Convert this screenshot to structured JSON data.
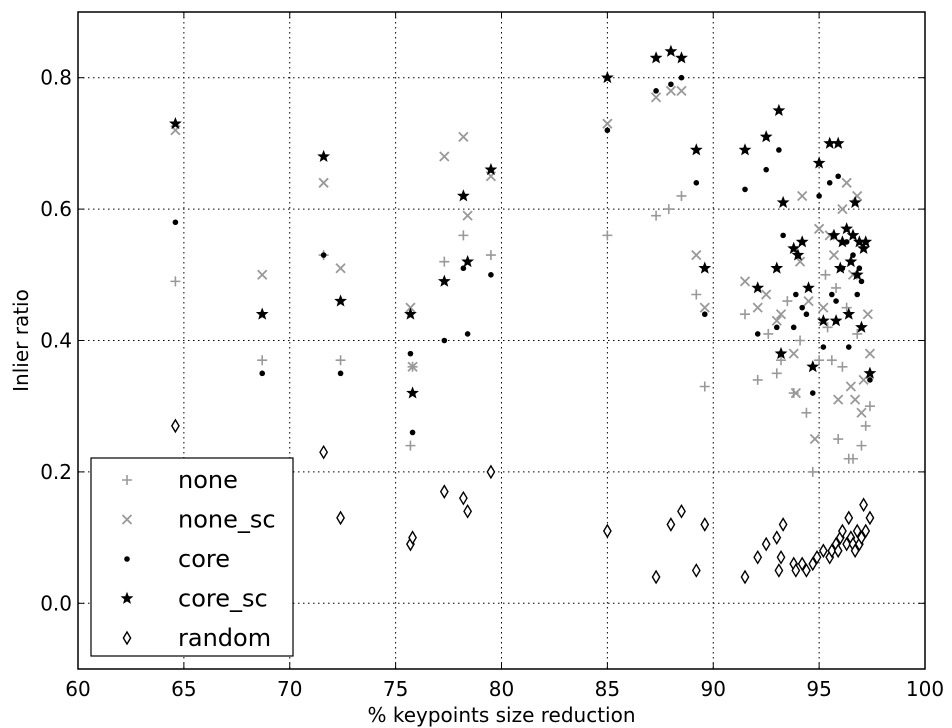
{
  "chart_data": {
    "type": "scatter",
    "xlabel": "% keypoints size reduction",
    "ylabel": "Inlier ratio",
    "xlim": [
      60,
      100
    ],
    "ylim": [
      -0.1,
      0.9
    ],
    "xticks": [
      60,
      65,
      70,
      75,
      80,
      85,
      90,
      95,
      100
    ],
    "yticks": [
      0.0,
      0.2,
      0.4,
      0.6,
      0.8
    ],
    "ytick_labels": [
      "0.0",
      "0.2",
      "0.4",
      "0.6",
      "0.8"
    ],
    "grid": true,
    "legend_position": "lower-left",
    "series": [
      {
        "name": "none",
        "marker": "plus",
        "color": "#999999",
        "points": [
          [
            64.6,
            0.49
          ],
          [
            68.7,
            0.37
          ],
          [
            71.6,
            0.53
          ],
          [
            72.4,
            0.37
          ],
          [
            75.7,
            0.24
          ],
          [
            75.8,
            0.36
          ],
          [
            77.3,
            0.52
          ],
          [
            78.2,
            0.56
          ],
          [
            79.5,
            0.53
          ],
          [
            85.0,
            0.56
          ],
          [
            87.3,
            0.59
          ],
          [
            87.9,
            0.6
          ],
          [
            88.5,
            0.62
          ],
          [
            89.2,
            0.47
          ],
          [
            89.6,
            0.33
          ],
          [
            91.5,
            0.44
          ],
          [
            92.1,
            0.34
          ],
          [
            92.6,
            0.41
          ],
          [
            93.0,
            0.35
          ],
          [
            93.2,
            0.37
          ],
          [
            93.8,
            0.32
          ],
          [
            94.4,
            0.29
          ],
          [
            94.7,
            0.2
          ],
          [
            95.0,
            0.37
          ],
          [
            95.4,
            0.42
          ],
          [
            95.6,
            0.37
          ],
          [
            95.9,
            0.25
          ],
          [
            96.1,
            0.36
          ],
          [
            96.4,
            0.22
          ],
          [
            96.6,
            0.22
          ],
          [
            96.8,
            0.41
          ],
          [
            97.0,
            0.24
          ],
          [
            97.2,
            0.27
          ],
          [
            97.4,
            0.3
          ],
          [
            95.3,
            0.5
          ],
          [
            95.8,
            0.48
          ],
          [
            96.3,
            0.45
          ],
          [
            94.1,
            0.4
          ],
          [
            93.5,
            0.46
          ]
        ]
      },
      {
        "name": "none_sc",
        "marker": "x",
        "color": "#999999",
        "points": [
          [
            64.6,
            0.72
          ],
          [
            68.7,
            0.5
          ],
          [
            71.6,
            0.64
          ],
          [
            72.4,
            0.51
          ],
          [
            75.7,
            0.45
          ],
          [
            75.8,
            0.36
          ],
          [
            77.3,
            0.68
          ],
          [
            78.2,
            0.71
          ],
          [
            78.4,
            0.59
          ],
          [
            79.5,
            0.65
          ],
          [
            85.0,
            0.73
          ],
          [
            87.3,
            0.77
          ],
          [
            88.0,
            0.78
          ],
          [
            88.5,
            0.78
          ],
          [
            89.2,
            0.53
          ],
          [
            89.6,
            0.45
          ],
          [
            91.5,
            0.49
          ],
          [
            92.1,
            0.45
          ],
          [
            92.5,
            0.47
          ],
          [
            93.0,
            0.43
          ],
          [
            93.2,
            0.44
          ],
          [
            93.8,
            0.38
          ],
          [
            94.1,
            0.52
          ],
          [
            94.2,
            0.62
          ],
          [
            94.5,
            0.46
          ],
          [
            94.8,
            0.25
          ],
          [
            95.0,
            0.57
          ],
          [
            95.2,
            0.45
          ],
          [
            95.5,
            0.56
          ],
          [
            95.7,
            0.53
          ],
          [
            95.9,
            0.31
          ],
          [
            96.1,
            0.6
          ],
          [
            96.3,
            0.64
          ],
          [
            96.5,
            0.33
          ],
          [
            96.6,
            0.5
          ],
          [
            96.8,
            0.62
          ],
          [
            97.0,
            0.29
          ],
          [
            97.1,
            0.34
          ],
          [
            97.3,
            0.44
          ],
          [
            97.4,
            0.38
          ],
          [
            93.9,
            0.32
          ],
          [
            96.7,
            0.31
          ]
        ]
      },
      {
        "name": "core",
        "marker": "dot",
        "color": "#000000",
        "points": [
          [
            64.6,
            0.58
          ],
          [
            68.7,
            0.35
          ],
          [
            71.6,
            0.53
          ],
          [
            72.4,
            0.35
          ],
          [
            75.7,
            0.38
          ],
          [
            75.8,
            0.26
          ],
          [
            77.3,
            0.4
          ],
          [
            78.2,
            0.51
          ],
          [
            78.4,
            0.41
          ],
          [
            79.5,
            0.5
          ],
          [
            85.0,
            0.72
          ],
          [
            87.3,
            0.78
          ],
          [
            88.0,
            0.79
          ],
          [
            88.5,
            0.8
          ],
          [
            89.2,
            0.64
          ],
          [
            89.6,
            0.44
          ],
          [
            91.5,
            0.63
          ],
          [
            92.1,
            0.41
          ],
          [
            92.5,
            0.66
          ],
          [
            93.0,
            0.42
          ],
          [
            93.1,
            0.69
          ],
          [
            93.2,
            0.38
          ],
          [
            93.3,
            0.56
          ],
          [
            93.8,
            0.42
          ],
          [
            93.9,
            0.47
          ],
          [
            94.2,
            0.45
          ],
          [
            94.4,
            0.44
          ],
          [
            94.7,
            0.32
          ],
          [
            95.0,
            0.62
          ],
          [
            95.2,
            0.39
          ],
          [
            95.5,
            0.64
          ],
          [
            95.6,
            0.47
          ],
          [
            95.8,
            0.46
          ],
          [
            95.9,
            0.65
          ],
          [
            96.1,
            0.51
          ],
          [
            96.3,
            0.55
          ],
          [
            96.4,
            0.39
          ],
          [
            96.6,
            0.53
          ],
          [
            96.8,
            0.47
          ],
          [
            96.9,
            0.51
          ],
          [
            97.0,
            0.49
          ],
          [
            97.2,
            0.55
          ],
          [
            97.4,
            0.34
          ]
        ]
      },
      {
        "name": "core_sc",
        "marker": "star",
        "color": "#000000",
        "points": [
          [
            64.6,
            0.73
          ],
          [
            68.7,
            0.44
          ],
          [
            71.6,
            0.68
          ],
          [
            72.4,
            0.46
          ],
          [
            75.7,
            0.44
          ],
          [
            75.8,
            0.32
          ],
          [
            77.3,
            0.49
          ],
          [
            78.2,
            0.62
          ],
          [
            78.4,
            0.52
          ],
          [
            79.5,
            0.66
          ],
          [
            85.0,
            0.8
          ],
          [
            87.3,
            0.83
          ],
          [
            88.0,
            0.84
          ],
          [
            88.5,
            0.83
          ],
          [
            89.2,
            0.69
          ],
          [
            89.6,
            0.51
          ],
          [
            91.5,
            0.69
          ],
          [
            92.1,
            0.48
          ],
          [
            92.5,
            0.71
          ],
          [
            93.0,
            0.51
          ],
          [
            93.1,
            0.75
          ],
          [
            93.2,
            0.38
          ],
          [
            93.3,
            0.61
          ],
          [
            93.8,
            0.54
          ],
          [
            94.0,
            0.53
          ],
          [
            94.2,
            0.55
          ],
          [
            94.5,
            0.48
          ],
          [
            94.7,
            0.36
          ],
          [
            95.0,
            0.67
          ],
          [
            95.2,
            0.43
          ],
          [
            95.5,
            0.7
          ],
          [
            95.7,
            0.56
          ],
          [
            95.8,
            0.43
          ],
          [
            95.9,
            0.7
          ],
          [
            96.0,
            0.51
          ],
          [
            96.1,
            0.55
          ],
          [
            96.3,
            0.57
          ],
          [
            96.4,
            0.44
          ],
          [
            96.5,
            0.52
          ],
          [
            96.6,
            0.56
          ],
          [
            96.7,
            0.61
          ],
          [
            96.8,
            0.5
          ],
          [
            96.9,
            0.55
          ],
          [
            97.0,
            0.42
          ],
          [
            97.1,
            0.54
          ],
          [
            97.2,
            0.55
          ],
          [
            97.4,
            0.35
          ]
        ]
      },
      {
        "name": "random",
        "marker": "thin_diamond",
        "color": "#000000",
        "points": [
          [
            64.6,
            0.27
          ],
          [
            71.6,
            0.23
          ],
          [
            72.4,
            0.13
          ],
          [
            75.7,
            0.09
          ],
          [
            75.8,
            0.1
          ],
          [
            77.3,
            0.17
          ],
          [
            78.2,
            0.16
          ],
          [
            78.4,
            0.14
          ],
          [
            79.5,
            0.2
          ],
          [
            85.0,
            0.11
          ],
          [
            87.3,
            0.04
          ],
          [
            88.0,
            0.12
          ],
          [
            88.5,
            0.14
          ],
          [
            89.2,
            0.05
          ],
          [
            89.6,
            0.12
          ],
          [
            91.5,
            0.04
          ],
          [
            92.1,
            0.07
          ],
          [
            92.5,
            0.09
          ],
          [
            93.0,
            0.1
          ],
          [
            93.1,
            0.05
          ],
          [
            93.2,
            0.07
          ],
          [
            93.3,
            0.12
          ],
          [
            93.8,
            0.06
          ],
          [
            93.9,
            0.05
          ],
          [
            94.2,
            0.06
          ],
          [
            94.4,
            0.05
          ],
          [
            94.7,
            0.06
          ],
          [
            94.9,
            0.07
          ],
          [
            95.2,
            0.08
          ],
          [
            95.5,
            0.07
          ],
          [
            95.6,
            0.08
          ],
          [
            95.8,
            0.09
          ],
          [
            95.9,
            0.08
          ],
          [
            96.0,
            0.1
          ],
          [
            96.1,
            0.11
          ],
          [
            96.3,
            0.09
          ],
          [
            96.4,
            0.13
          ],
          [
            96.5,
            0.1
          ],
          [
            96.6,
            0.09
          ],
          [
            96.7,
            0.08
          ],
          [
            96.8,
            0.11
          ],
          [
            96.9,
            0.09
          ],
          [
            97.0,
            0.1
          ],
          [
            97.1,
            0.15
          ],
          [
            97.2,
            0.11
          ],
          [
            97.4,
            0.13
          ]
        ]
      }
    ]
  }
}
